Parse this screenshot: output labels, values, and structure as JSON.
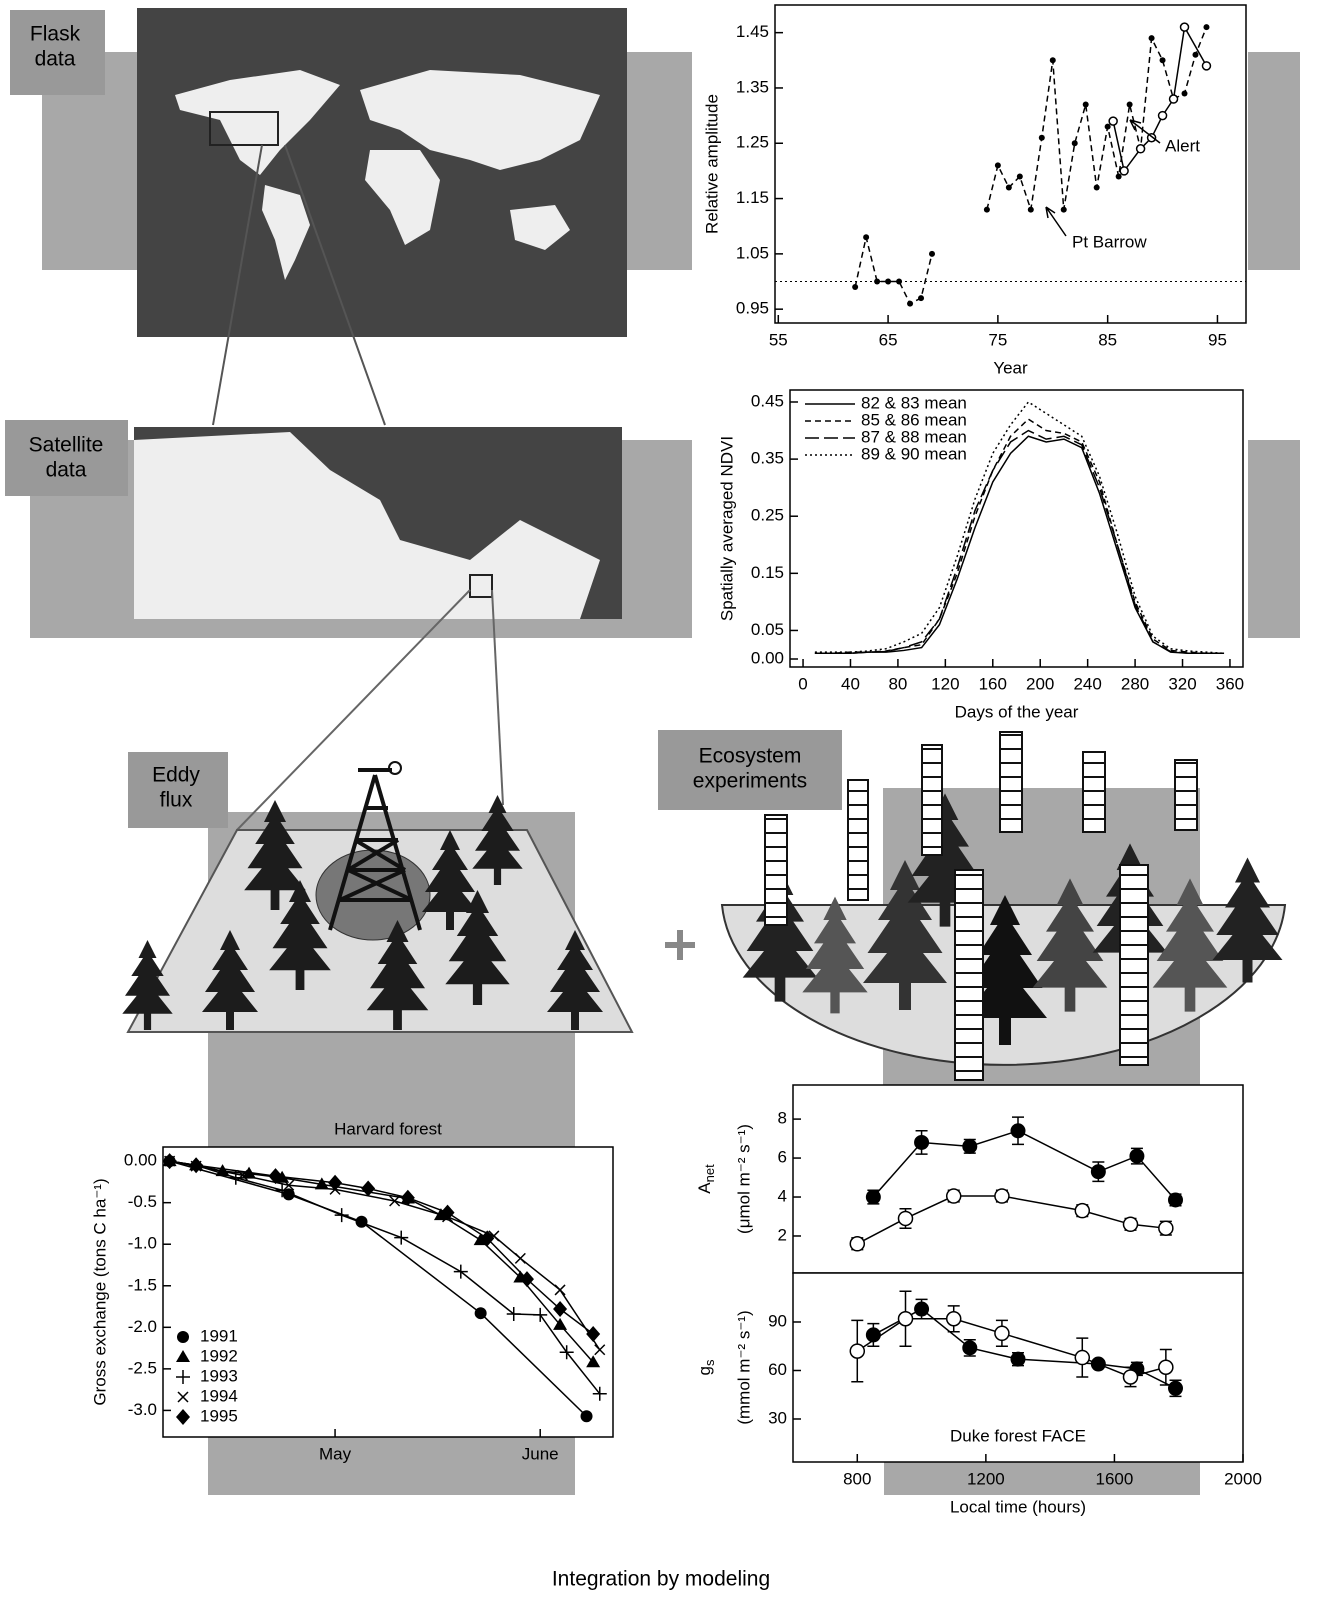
{
  "labels": {
    "flask": [
      "Flask",
      "data"
    ],
    "satellite": [
      "Satellite",
      "data"
    ],
    "eddy": [
      "Eddy",
      "flux"
    ],
    "ecosystem": [
      "Ecosystem",
      "experiments"
    ],
    "footer": "Integration by modeling"
  },
  "chart_data": [
    {
      "type": "line",
      "ylabel": "Relative amplitude",
      "xlabel": "Year",
      "xlim": [
        54.7,
        97.6
      ],
      "ylim": [
        0.925,
        1.5
      ],
      "xticks": [
        55,
        65,
        75,
        85,
        95
      ],
      "yticks": [
        0.95,
        1.05,
        1.15,
        1.25,
        1.35,
        1.45
      ],
      "hline": 1,
      "series": [
        {
          "name": "Pt Barrow",
          "color": "#000000",
          "line_style": "dashed",
          "marker": "dot",
          "x": [
            62,
            63,
            64,
            65,
            66,
            67,
            68,
            69,
            71,
            74,
            75,
            76,
            77,
            78,
            79,
            80,
            81,
            82,
            83,
            84,
            85,
            86,
            87,
            88,
            89,
            90,
            91,
            92,
            93,
            94
          ],
          "values": [
            0.99,
            1.08,
            1.0,
            1.0,
            1.0,
            0.96,
            0.97,
            1.05,
            null,
            1.13,
            1.21,
            1.17,
            1.19,
            1.13,
            1.26,
            1.4,
            1.13,
            1.25,
            1.32,
            1.17,
            1.28,
            1.19,
            1.32,
            1.24,
            1.44,
            1.4,
            1.33,
            1.34,
            1.41,
            1.46
          ]
        },
        {
          "name": "Alert",
          "color": "#000000",
          "line_style": "solid",
          "marker": "open-small",
          "x": [
            85.5,
            86.5,
            88,
            89,
            90,
            91,
            92,
            94
          ],
          "values": [
            1.29,
            1.2,
            1.24,
            1.26,
            1.3,
            1.33,
            1.46,
            1.39
          ]
        }
      ]
    },
    {
      "type": "line",
      "ylabel": "Spatially averaged NDVI",
      "xlabel": "Days of the year",
      "xlim": [
        -11,
        371
      ],
      "ylim": [
        -0.014,
        0.471
      ],
      "xticks": [
        0,
        40,
        80,
        120,
        160,
        200,
        240,
        280,
        320,
        360
      ],
      "yticks": [
        {
          "value": 0,
          "label": "0.00"
        },
        0.05,
        0.15,
        0.25,
        0.35,
        0.45
      ],
      "legend": "upper left",
      "x": [
        10,
        25,
        40,
        55,
        70,
        85,
        100,
        115,
        130,
        145,
        160,
        175,
        190,
        205,
        220,
        235,
        250,
        265,
        280,
        295,
        310,
        325,
        340,
        355
      ],
      "series": [
        {
          "name": "82 & 83 mean",
          "color": "#000000",
          "line_style": "solid",
          "values": [
            0.01,
            0.01,
            0.01,
            0.012,
            0.012,
            0.015,
            0.02,
            0.06,
            0.14,
            0.23,
            0.31,
            0.36,
            0.39,
            0.38,
            0.385,
            0.37,
            0.29,
            0.19,
            0.09,
            0.03,
            0.012,
            0.01,
            0.01,
            0.01
          ]
        },
        {
          "name": "85 & 86 mean",
          "color": "#000000",
          "line_style": "dashed",
          "values": [
            0.01,
            0.01,
            0.012,
            0.012,
            0.014,
            0.02,
            0.025,
            0.07,
            0.15,
            0.25,
            0.33,
            0.39,
            0.42,
            0.4,
            0.395,
            0.38,
            0.31,
            0.2,
            0.1,
            0.035,
            0.015,
            0.012,
            0.01,
            0.01
          ]
        },
        {
          "name": "87 & 88 mean",
          "color": "#000000",
          "line_style": "long-dash",
          "values": [
            0.01,
            0.01,
            0.01,
            0.012,
            0.013,
            0.02,
            0.03,
            0.07,
            0.16,
            0.26,
            0.33,
            0.38,
            0.4,
            0.385,
            0.39,
            0.375,
            0.3,
            0.2,
            0.095,
            0.03,
            0.013,
            0.01,
            0.01,
            0.01
          ]
        },
        {
          "name": "89 & 90 mean",
          "color": "#000000",
          "line_style": "dotted",
          "values": [
            0.012,
            0.012,
            0.012,
            0.014,
            0.018,
            0.03,
            0.045,
            0.09,
            0.18,
            0.28,
            0.36,
            0.41,
            0.45,
            0.43,
            0.41,
            0.39,
            0.32,
            0.22,
            0.11,
            0.04,
            0.018,
            0.014,
            0.012,
            0.01
          ]
        }
      ]
    },
    {
      "type": "line",
      "title": "Harvard forest",
      "ylabel": "Gross exchange (tons C ha⁻¹)",
      "xlim": [
        95,
        163
      ],
      "ylim": [
        -3.32,
        0.17
      ],
      "xticks": [
        {
          "value": 121,
          "label": "May"
        },
        {
          "value": 152,
          "label": "June"
        }
      ],
      "yticks": [
        {
          "value": 0,
          "label": "0.00"
        },
        -0.5,
        {
          "value": -1,
          "label": "-1.0"
        },
        -1.5,
        {
          "value": -2,
          "label": "-2.0"
        },
        -2.5,
        {
          "value": -3,
          "label": "-3.0"
        }
      ],
      "legend": "lower left",
      "series": [
        {
          "name": "1991",
          "color": "#000000",
          "line_style": "solid",
          "marker": "circle",
          "x": [
            96,
            114,
            125,
            143,
            159
          ],
          "values": [
            0,
            -0.4,
            -0.73,
            -1.83,
            -3.07
          ]
        },
        {
          "name": "1992",
          "color": "#000000",
          "line_style": "solid",
          "marker": "triangle",
          "x": [
            96,
            100,
            104,
            108,
            113,
            119,
            132,
            137,
            143,
            149,
            155,
            160
          ],
          "values": [
            0,
            -0.05,
            -0.12,
            -0.15,
            -0.2,
            -0.28,
            -0.45,
            -0.65,
            -0.95,
            -1.4,
            -1.97,
            -2.42
          ]
        },
        {
          "name": "1993",
          "color": "#000000",
          "line_style": "solid",
          "marker": "plus",
          "x": [
            96,
            100,
            106,
            113,
            122,
            131,
            140,
            148,
            152,
            156,
            161
          ],
          "values": [
            0,
            -0.05,
            -0.2,
            -0.35,
            -0.65,
            -0.92,
            -1.33,
            -1.84,
            -1.85,
            -2.3,
            -2.8
          ]
        },
        {
          "name": "1994",
          "color": "#000000",
          "line_style": "solid",
          "marker": "cross",
          "x": [
            96,
            100,
            107,
            114,
            121,
            130,
            138,
            145,
            149,
            155,
            161
          ],
          "values": [
            0,
            -0.06,
            -0.17,
            -0.29,
            -0.34,
            -0.48,
            -0.67,
            -0.9,
            -1.17,
            -1.55,
            -2.27
          ]
        },
        {
          "name": "1995",
          "color": "#000000",
          "line_style": "solid",
          "marker": "diamond",
          "x": [
            96,
            100,
            112,
            121,
            126,
            132,
            138,
            144,
            150,
            155,
            160
          ],
          "values": [
            0,
            -0.05,
            -0.18,
            -0.26,
            -0.33,
            -0.44,
            -0.62,
            -0.93,
            -1.42,
            -1.78,
            -2.08
          ]
        }
      ]
    },
    {
      "type": "line",
      "ylabel": {
        "main": "A",
        "sub": "net",
        "units": "(μmol m⁻² s⁻¹)"
      },
      "xlim": [
        600,
        2000
      ],
      "ylim": [
        0.1,
        9.75
      ],
      "yticks": [
        2,
        4,
        6,
        8
      ],
      "series": [
        {
          "color": "#000000",
          "line_style": "solid",
          "marker": "filled",
          "x": [
            850,
            1000,
            1150,
            1300,
            1550,
            1670,
            1790
          ],
          "values": [
            4.0,
            6.8,
            6.6,
            7.4,
            5.3,
            6.1,
            3.85
          ],
          "errors": [
            0.35,
            0.6,
            0.35,
            0.7,
            0.5,
            0.4,
            0.3
          ]
        },
        {
          "color": "#000000",
          "line_style": "solid",
          "marker": "open",
          "x": [
            800,
            950,
            1100,
            1250,
            1500,
            1650,
            1760
          ],
          "values": [
            1.6,
            2.9,
            4.05,
            4.05,
            3.3,
            2.6,
            2.4
          ],
          "errors": [
            0.3,
            0.5,
            0.3,
            0.3,
            0.3,
            0.3,
            0.35
          ]
        }
      ]
    },
    {
      "type": "line",
      "ylabel": {
        "main": "g",
        "sub": "s",
        "units": "(mmol m⁻² s⁻¹)"
      },
      "xlabel": "Local time (hours)",
      "annotation": "Duke forest FACE",
      "xlim": [
        600,
        2000
      ],
      "ylim": [
        3.4,
        120.3
      ],
      "xticks": [
        800,
        1200,
        1600,
        2000
      ],
      "yticks": [
        30,
        60,
        90
      ],
      "series": [
        {
          "color": "#000000",
          "line_style": "solid",
          "marker": "filled",
          "x": [
            850,
            1000,
            1150,
            1300,
            1550,
            1670,
            1790
          ],
          "values": [
            82,
            98,
            74,
            67,
            64,
            61,
            49
          ],
          "errors": [
            7,
            6,
            5,
            4,
            2,
            4,
            5
          ]
        },
        {
          "color": "#000000",
          "line_style": "solid",
          "marker": "open",
          "x": [
            800,
            950,
            1100,
            1250,
            1500,
            1650,
            1760
          ],
          "values": [
            72,
            92,
            92,
            83,
            68,
            56,
            62
          ],
          "errors": [
            19,
            17,
            8,
            8,
            12,
            6,
            11
          ]
        }
      ]
    }
  ]
}
